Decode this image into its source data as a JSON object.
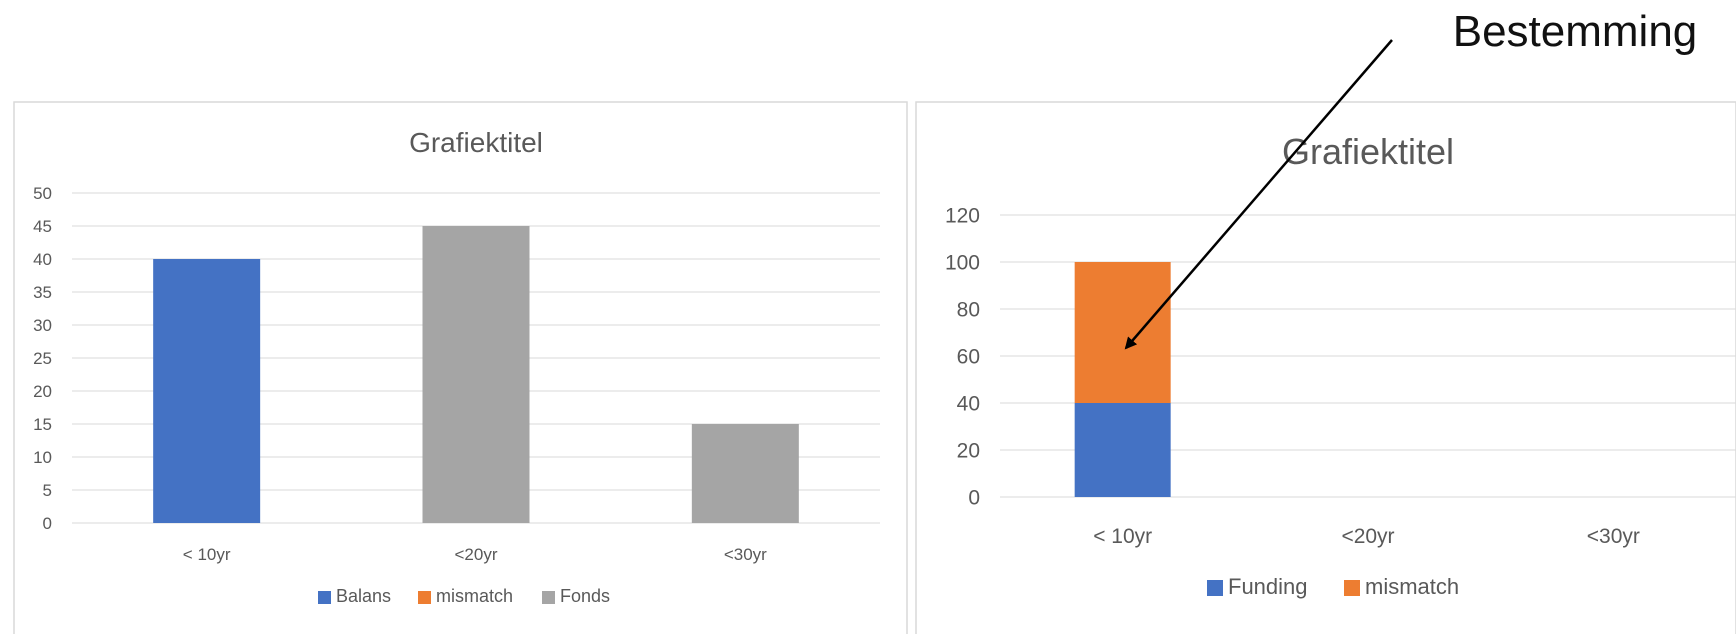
{
  "chart_data": [
    {
      "type": "bar",
      "title": "Grafiektitel",
      "categories": [
        "< 10yr",
        "<20yr",
        "<30yr"
      ],
      "series": [
        {
          "name": "Balans",
          "color": "#4472c4",
          "values": [
            40,
            0,
            0
          ]
        },
        {
          "name": "mismatch",
          "color": "#ed7d31",
          "values": [
            0,
            0,
            0
          ]
        },
        {
          "name": "Fonds",
          "color": "#a5a5a5",
          "values": [
            0,
            45,
            15
          ]
        }
      ],
      "ylim": [
        0,
        50
      ],
      "yticks": [
        0,
        5,
        10,
        15,
        20,
        25,
        30,
        35,
        40,
        45,
        50
      ],
      "stacked": true,
      "grid": true,
      "legend": "bottom"
    },
    {
      "type": "bar",
      "title": "Grafiektitel",
      "categories": [
        "< 10yr",
        "<20yr",
        "<30yr"
      ],
      "series": [
        {
          "name": "Funding",
          "color": "#4472c4",
          "values": [
            40,
            0,
            0
          ]
        },
        {
          "name": "mismatch",
          "color": "#ed7d31",
          "values": [
            60,
            0,
            0
          ]
        }
      ],
      "ylim": [
        0,
        120
      ],
      "yticks": [
        0,
        20,
        40,
        60,
        80,
        100,
        120
      ],
      "stacked": true,
      "grid": true,
      "legend": "bottom"
    }
  ],
  "annotation": {
    "text": "Bestemming",
    "points_to": {
      "chart": 2,
      "category": "< 10yr",
      "series": "mismatch"
    }
  }
}
